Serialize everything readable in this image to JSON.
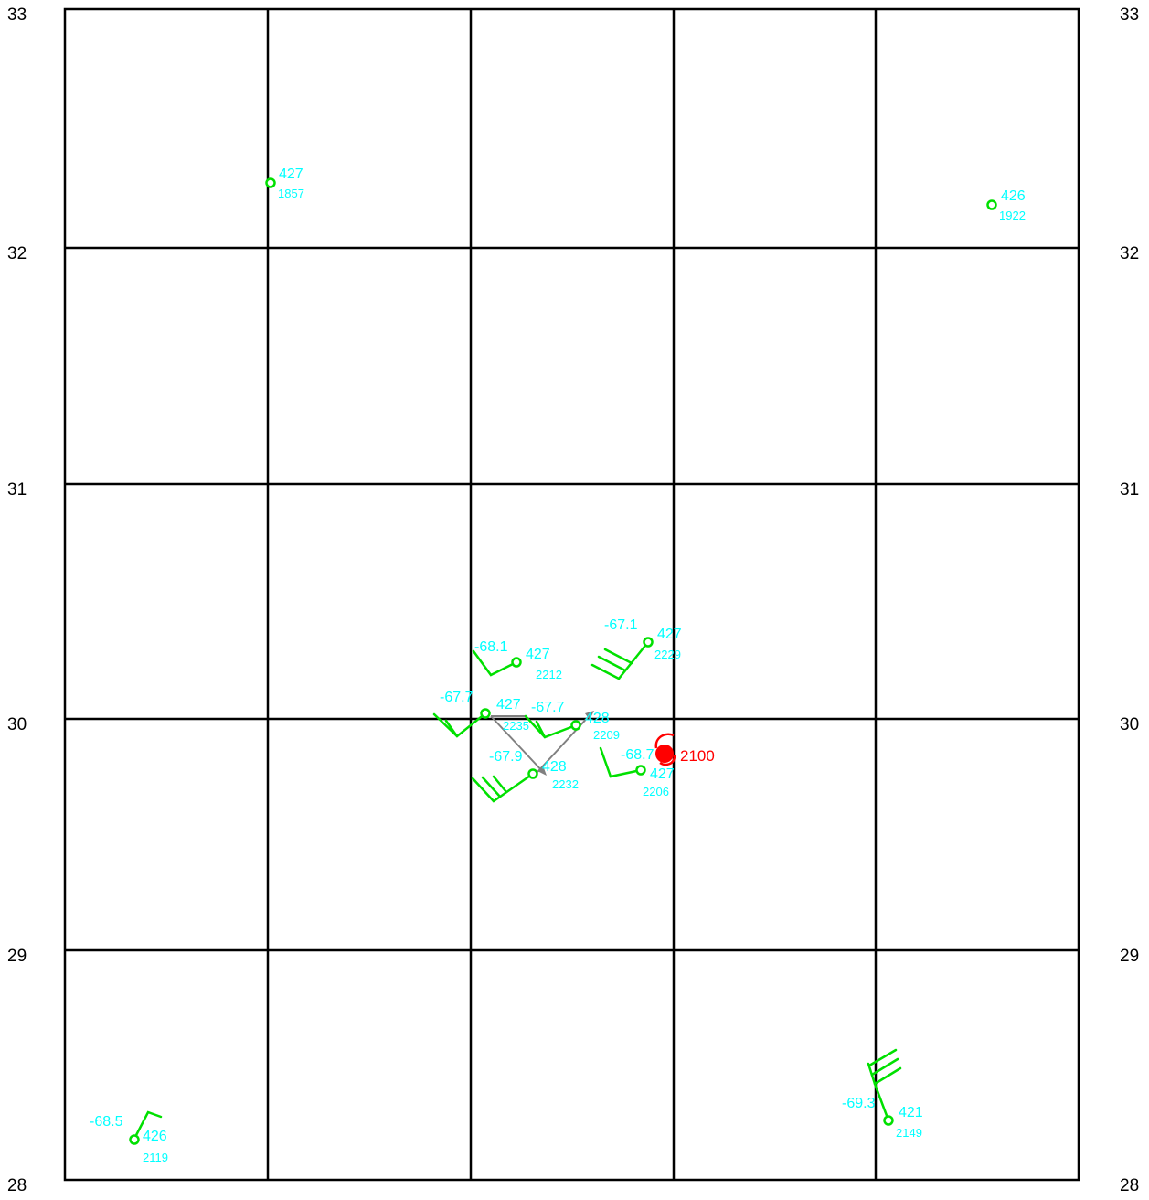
{
  "lat_labels": {
    "lat_33": "33",
    "lat_32": "32",
    "lat_31": "31",
    "lat_30": "30",
    "lat_29": "29",
    "lat_28": "28"
  },
  "colors": {
    "grid": "#000000",
    "station": "#00e000",
    "label": "#00ffff",
    "center": "#ff0000",
    "motion": "#808080"
  },
  "stations": {
    "s1857": {
      "height": "427",
      "time": "1857",
      "temp": ""
    },
    "s1922": {
      "height": "426",
      "time": "1922",
      "temp": ""
    },
    "s2212": {
      "height": "427",
      "time": "2212",
      "temp": "-68.1"
    },
    "s2229": {
      "height": "427",
      "time": "2229",
      "temp": "-67.1"
    },
    "s2235": {
      "height": "427",
      "time": "2235",
      "temp": "-67.7"
    },
    "s2209": {
      "height": "428",
      "time": "2209",
      "temp": "-67.7"
    },
    "s2232": {
      "height": "428",
      "time": "2232",
      "temp": "-67.9"
    },
    "s2206": {
      "height": "427",
      "time": "2206",
      "temp": "-68.7"
    },
    "s2119": {
      "height": "426",
      "time": "2119",
      "temp": "-68.5"
    },
    "s2149": {
      "height": "421",
      "time": "2149",
      "temp": "-69.3"
    }
  },
  "center": {
    "label": "2100",
    "icon": "storm-center-icon"
  }
}
